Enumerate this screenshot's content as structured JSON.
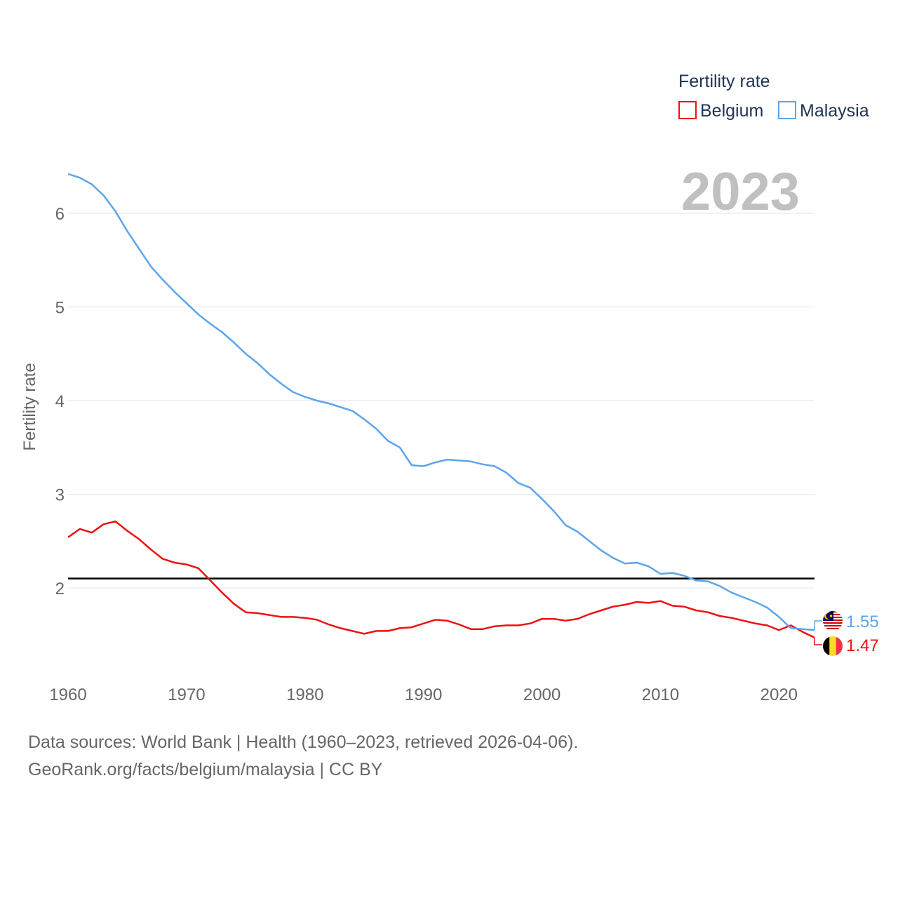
{
  "chart_data": {
    "type": "line",
    "ylabel": "Fertility rate",
    "xlabel": "",
    "xlim": [
      1960,
      2023
    ],
    "ylim": [
      1.2,
      6.5
    ],
    "x_ticks": [
      1960,
      1970,
      1980,
      1990,
      2000,
      2010,
      2020
    ],
    "y_ticks": [
      2,
      3,
      4,
      5,
      6
    ],
    "grid": true,
    "reference_line": {
      "value": 2.1,
      "color": "#000000"
    },
    "current_year_label": "2023",
    "legend": {
      "title": "Fertility rate",
      "placement": "top-right",
      "items": [
        {
          "name": "Belgium",
          "color": "#ee1111"
        },
        {
          "name": "Malaysia",
          "color": "#5da5e8"
        }
      ]
    },
    "x": [
      1960,
      1961,
      1962,
      1963,
      1964,
      1965,
      1966,
      1967,
      1968,
      1969,
      1970,
      1971,
      1972,
      1973,
      1974,
      1975,
      1976,
      1977,
      1978,
      1979,
      1980,
      1981,
      1982,
      1983,
      1984,
      1985,
      1986,
      1987,
      1988,
      1989,
      1990,
      1991,
      1992,
      1993,
      1994,
      1995,
      1996,
      1997,
      1998,
      1999,
      2000,
      2001,
      2002,
      2003,
      2004,
      2005,
      2006,
      2007,
      2008,
      2009,
      2010,
      2011,
      2012,
      2013,
      2014,
      2015,
      2016,
      2017,
      2018,
      2019,
      2020,
      2021,
      2022,
      2023
    ],
    "series": [
      {
        "name": "Belgium",
        "color": "#ee1111",
        "end_label": "1.47",
        "flag": "belgium-flag-icon",
        "values": [
          2.54,
          2.63,
          2.59,
          2.68,
          2.71,
          2.61,
          2.52,
          2.41,
          2.31,
          2.27,
          2.25,
          2.21,
          2.08,
          1.95,
          1.83,
          1.74,
          1.73,
          1.71,
          1.69,
          1.69,
          1.68,
          1.66,
          1.61,
          1.57,
          1.54,
          1.51,
          1.54,
          1.54,
          1.57,
          1.58,
          1.62,
          1.66,
          1.65,
          1.61,
          1.56,
          1.56,
          1.59,
          1.6,
          1.6,
          1.62,
          1.67,
          1.67,
          1.65,
          1.67,
          1.72,
          1.76,
          1.8,
          1.82,
          1.85,
          1.84,
          1.86,
          1.81,
          1.8,
          1.76,
          1.74,
          1.7,
          1.68,
          1.65,
          1.62,
          1.6,
          1.55,
          1.6,
          1.53,
          1.47
        ]
      },
      {
        "name": "Malaysia",
        "color": "#5da5e8",
        "end_label": "1.55",
        "flag": "malaysia-flag-icon",
        "values": [
          6.42,
          6.38,
          6.31,
          6.19,
          6.02,
          5.81,
          5.62,
          5.43,
          5.29,
          5.16,
          5.04,
          4.92,
          4.82,
          4.73,
          4.62,
          4.5,
          4.4,
          4.28,
          4.18,
          4.09,
          4.04,
          4.0,
          3.97,
          3.93,
          3.89,
          3.8,
          3.7,
          3.57,
          3.5,
          3.31,
          3.3,
          3.34,
          3.37,
          3.36,
          3.35,
          3.32,
          3.3,
          3.23,
          3.12,
          3.07,
          2.95,
          2.82,
          2.67,
          2.6,
          2.5,
          2.4,
          2.32,
          2.26,
          2.27,
          2.23,
          2.15,
          2.16,
          2.13,
          2.08,
          2.07,
          2.02,
          1.95,
          1.9,
          1.85,
          1.79,
          1.69,
          1.57,
          1.56,
          1.55
        ]
      }
    ]
  },
  "footer": {
    "sources": "Data sources: World Bank | Health (1960–2023, retrieved 2026-04-06).",
    "attribution": "GeoRank.org/facts/belgium/malaysia | CC BY"
  }
}
